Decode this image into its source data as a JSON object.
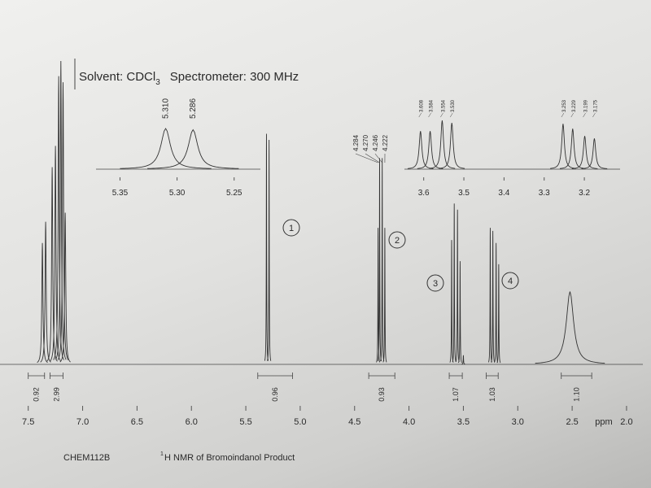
{
  "chart_data": {
    "type": "line",
    "title_parts": [
      "Solvent: CDCl",
      "3",
      "Spectrometer: 300 MHz"
    ],
    "x_label": "ppm",
    "xlim": [
      7.61,
      1.85
    ],
    "ylim": [
      0,
      100
    ],
    "xticks": [
      7.5,
      {
        "value": 7,
        "label": "7.0"
      },
      6.5,
      {
        "value": 6,
        "label": "6.0"
      },
      5.5,
      {
        "value": 5,
        "label": "5.0"
      },
      4.5,
      {
        "value": 4,
        "label": "4.0"
      },
      3.5,
      {
        "value": 3,
        "label": "3.0"
      },
      2.5,
      {
        "value": 2,
        "label": "2.0"
      }
    ],
    "signals": [
      {
        "ppm": [
          7.37,
          7.34,
          7.28,
          7.25,
          7.22,
          7.2,
          7.18,
          7.16
        ],
        "values": [
          40,
          47,
          65,
          72,
          95,
          100,
          93,
          50
        ],
        "width": 0.006,
        "integrals": [
          {
            "value": 0.92,
            "from": 7.5,
            "to": 7.35
          },
          {
            "value": 2.99,
            "from": 7.3,
            "to": 7.18
          }
        ]
      },
      {
        "label": "1",
        "ppm": [
          5.31,
          5.286
        ],
        "values": [
          76,
          74
        ],
        "width": 0.002,
        "integrals": [
          {
            "value": 0.96,
            "from": 5.39,
            "to": 5.07
          }
        ]
      },
      {
        "label": "2",
        "ppm": [
          4.284,
          4.27,
          4.246,
          4.222
        ],
        "values": [
          45,
          68,
          68,
          45
        ],
        "value_labels": [
          "4.284",
          "4.270",
          "4.246",
          "4.222"
        ],
        "width": 0.002,
        "integrals": [
          {
            "value": 0.93,
            "from": 4.37,
            "to": 4.13
          }
        ]
      },
      {
        "label": "3",
        "ppm": [
          3.608,
          3.584,
          3.554,
          3.53,
          3.5
        ],
        "values": [
          41,
          53,
          51,
          34,
          3
        ],
        "width": 0.002,
        "integrals": [
          {
            "value": 1.07,
            "from": 3.63,
            "to": 3.51
          }
        ]
      },
      {
        "label": "4",
        "ppm": [
          3.253,
          3.229,
          3.199,
          3.175
        ],
        "values": [
          45,
          44,
          40,
          33
        ],
        "width": 0.002,
        "integrals": [
          {
            "value": 1.03,
            "from": 3.29,
            "to": 3.18
          }
        ]
      },
      {
        "ppm": [
          2.52
        ],
        "values": [
          24
        ],
        "width": 0.04,
        "integrals": [
          {
            "value": 1.1,
            "label": "1.10",
            "from": 2.6,
            "to": 2.32
          }
        ]
      }
    ],
    "insets": [
      {
        "xlim": [
          5.371,
          5.227
        ],
        "ylim": [
          0,
          100
        ],
        "xticks": [
          5.35,
          {
            "value": 5.3,
            "label": "5.30"
          },
          5.25
        ],
        "ppm": [
          5.31,
          5.286
        ],
        "values": [
          100,
          97
        ],
        "value_labels": [
          "5.310",
          "5.286"
        ],
        "width": 0.005
      },
      {
        "xlim": [
          3.648,
          3.111
        ],
        "ylim": [
          0,
          100
        ],
        "xticks": [
          3.6,
          3.5,
          3.4,
          3.3,
          3.2
        ],
        "ppm": [
          3.608,
          3.584,
          3.554,
          3.53,
          3.253,
          3.229,
          3.199,
          3.175
        ],
        "values": [
          78,
          78,
          100,
          95,
          93,
          83,
          68,
          63
        ],
        "value_labels": [
          "3.608",
          "3.584",
          "3.554",
          "3.530",
          "3.253",
          "3.229",
          "3.199",
          "3.175"
        ],
        "width": 0.004
      }
    ],
    "footer_parts": [
      "CHEM112B",
      "1",
      "H NMR of Bromoindanol Product"
    ]
  }
}
